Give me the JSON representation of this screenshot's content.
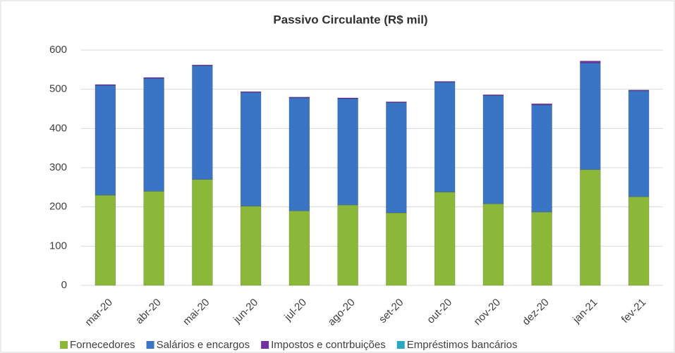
{
  "chart_data": {
    "type": "stacked_bar",
    "title": "Passivo Circulante (R$ mil)",
    "categories": [
      "mar-20",
      "abr-20",
      "mai-20",
      "jun-20",
      "jul-20",
      "ago-20",
      "set-20",
      "out-20",
      "nov-20",
      "dez-20",
      "jan-21",
      "fev-21"
    ],
    "series": [
      {
        "name": "Fornecedores",
        "color": "#8cb83a",
        "values": [
          230,
          240,
          270,
          202,
          190,
          205,
          185,
          238,
          208,
          187,
          295,
          226
        ]
      },
      {
        "name": "Salários e encargos",
        "color": "#3a74c4",
        "values": [
          280,
          288,
          290,
          290,
          288,
          271,
          281,
          280,
          276,
          273,
          272,
          270
        ]
      },
      {
        "name": "Impostos e contrbuições",
        "color": "#7030a0",
        "values": [
          2,
          2,
          2,
          2,
          2,
          2,
          2,
          2,
          2,
          3,
          5,
          2
        ]
      },
      {
        "name": "Empréstimos bancários",
        "color": "#2aa8c0",
        "values": [
          0,
          0,
          0,
          0,
          0,
          0,
          0,
          0,
          0,
          0,
          0,
          0
        ]
      }
    ],
    "ylim": [
      0,
      600
    ],
    "yticks": [
      0,
      100,
      200,
      300,
      400,
      500,
      600
    ],
    "grid": true,
    "legend": "bottom"
  }
}
